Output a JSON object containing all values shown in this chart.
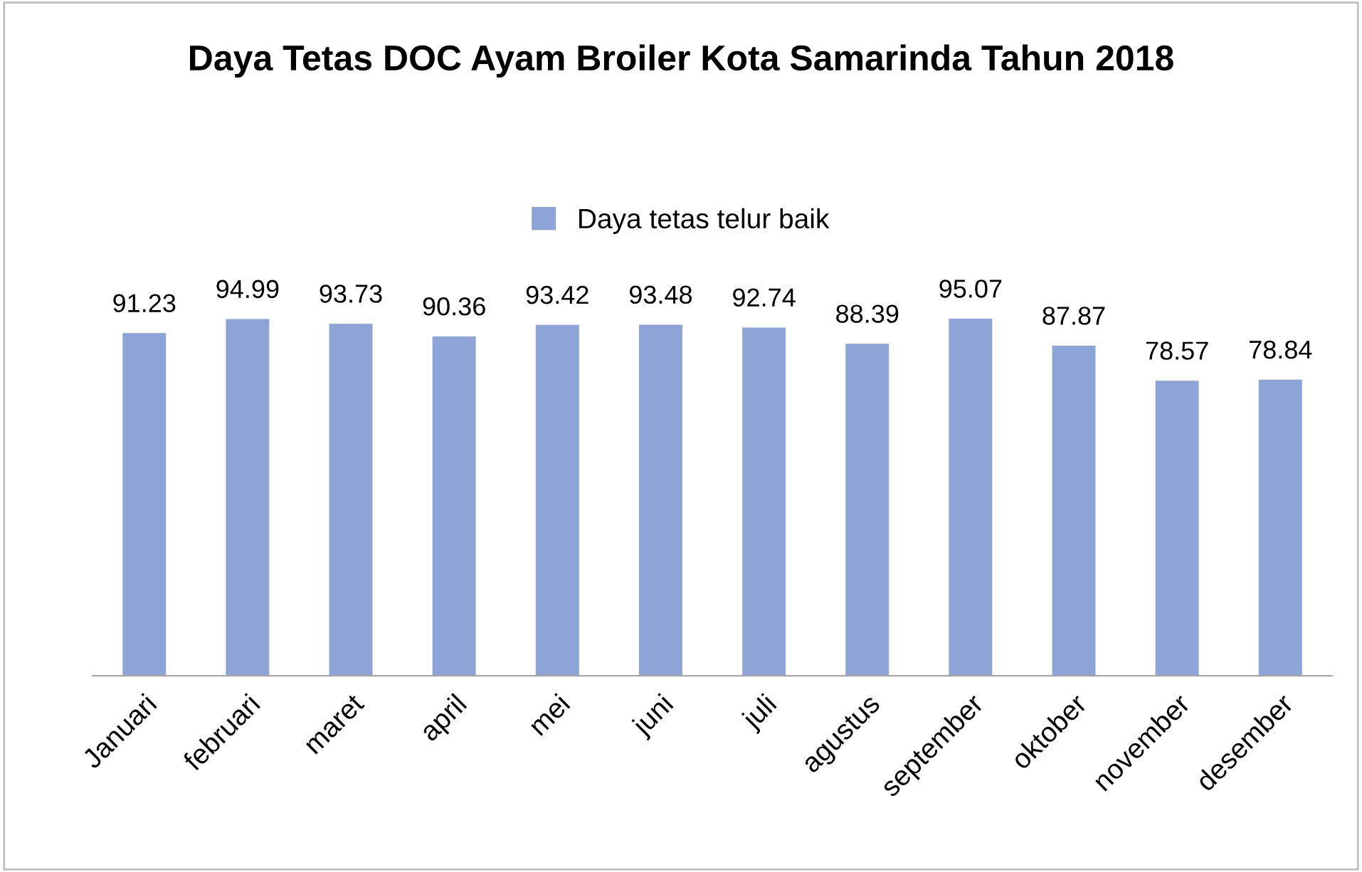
{
  "chart_data": {
    "type": "bar",
    "title": "Daya Tetas DOC Ayam Broiler Kota Samarinda Tahun 2018",
    "categories": [
      "Januari",
      "februari",
      "maret",
      "april",
      "mei",
      "juni",
      "juli",
      "agustus",
      "september",
      "oktober",
      "november",
      "desember"
    ],
    "series": [
      {
        "name": "Daya tetas telur baik",
        "color": "#8fa4d6",
        "values": [
          91.23,
          94.99,
          93.73,
          90.36,
          93.42,
          93.48,
          92.74,
          88.39,
          95.07,
          87.87,
          78.57,
          78.84
        ]
      }
    ],
    "data_labels": true,
    "legend": "top",
    "grid": false,
    "tick_labels": "x"
  }
}
